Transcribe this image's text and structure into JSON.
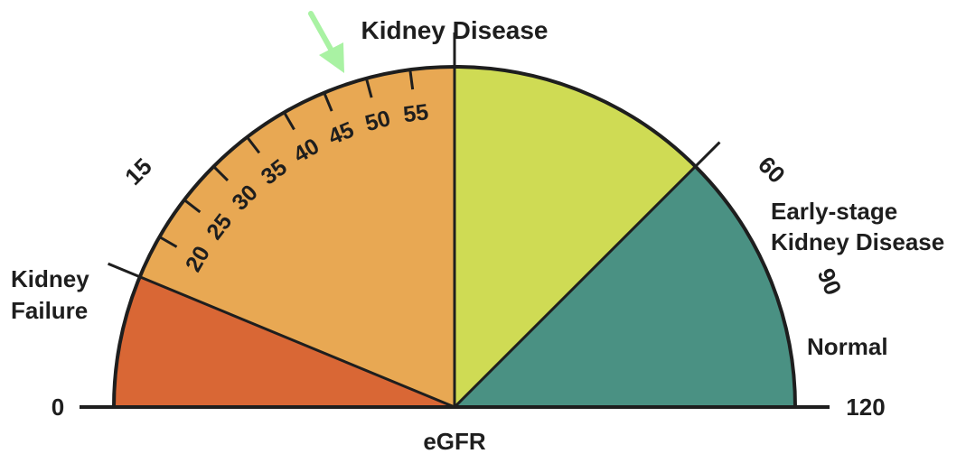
{
  "title": "Kidney Disease",
  "axis_label": "eGFR",
  "colors": {
    "kidney_failure": "#d96735",
    "kidney_disease": "#e8a853",
    "early_stage": "#cfdb54",
    "normal": "#4a9183",
    "outline": "#1e1e1e",
    "arrow": "#a9f2a3"
  },
  "zones": [
    {
      "key": "kidney_failure",
      "from": 0,
      "to": 15,
      "label_lines": [
        "Kidney",
        "Failure"
      ]
    },
    {
      "key": "kidney_disease",
      "from": 15,
      "to": 60,
      "label_lines": [
        "Kidney Disease"
      ]
    },
    {
      "key": "early_stage",
      "from": 60,
      "to": 90,
      "label_lines": [
        "Early-stage",
        "Kidney Disease"
      ]
    },
    {
      "key": "normal",
      "from": 90,
      "to": 120,
      "label_lines": [
        "Normal"
      ]
    }
  ],
  "boundary_labels": [
    "15",
    "60",
    "90"
  ],
  "end_labels": {
    "left": "0",
    "right": "120"
  },
  "minor_ticks": [
    "20",
    "25",
    "30",
    "35",
    "40",
    "45",
    "50",
    "55"
  ],
  "arrow_icon": "arrow-down-right-icon"
}
